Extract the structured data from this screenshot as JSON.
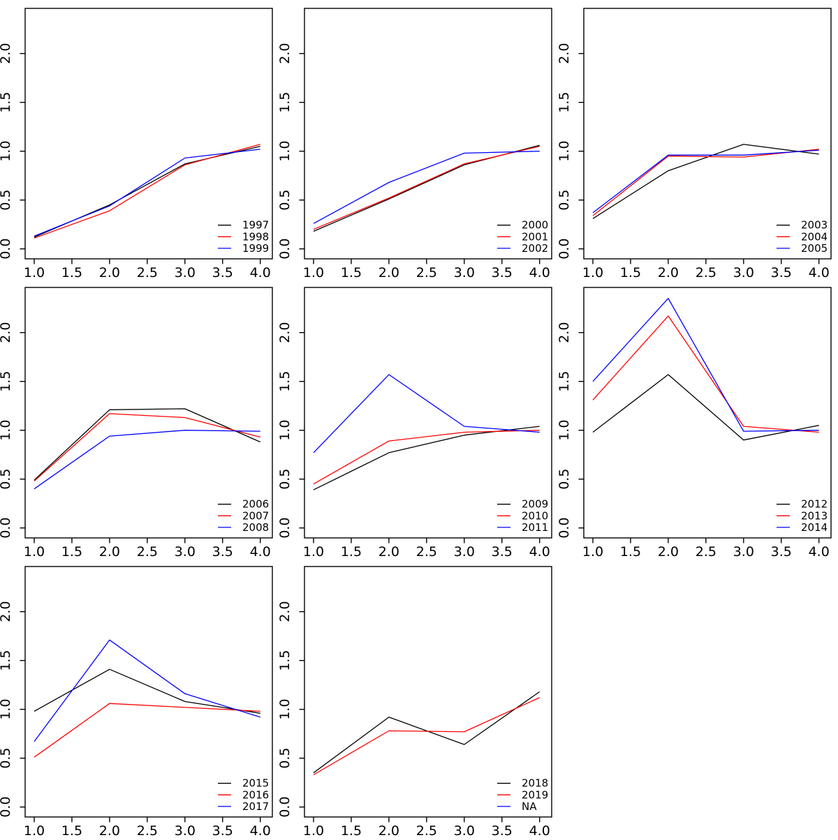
{
  "figure": {
    "background": "#ffffff",
    "grid_rows": 3,
    "grid_cols": 3,
    "empty_cells": 1
  },
  "axes": {
    "x_tick_labels": [
      "1.0",
      "1.5",
      "2.0",
      "2.5",
      "3.0",
      "3.5",
      "4.0"
    ],
    "y_tick_labels": [
      "0.0",
      "0.5",
      "1.0",
      "1.5",
      "2.0"
    ],
    "xlim": [
      0.88,
      4.12
    ],
    "ylim": [
      -0.1,
      2.45
    ],
    "grid": false,
    "box": true
  },
  "colors": {
    "series1": "#000000",
    "series2": "#FF0000",
    "series3": "#0000FF"
  },
  "chart_data": [
    {
      "type": "line",
      "title": "",
      "xlabel": "",
      "ylabel": "",
      "x": [
        1,
        2,
        3,
        4
      ],
      "legend_position": "bottom-right",
      "series": [
        {
          "name": "1997",
          "color": "#000000",
          "values": [
            0.12,
            0.45,
            0.87,
            1.05
          ]
        },
        {
          "name": "1998",
          "color": "#FF0000",
          "values": [
            0.11,
            0.39,
            0.86,
            1.07
          ]
        },
        {
          "name": "1999",
          "color": "#0000FF",
          "values": [
            0.13,
            0.44,
            0.93,
            1.02
          ]
        }
      ]
    },
    {
      "type": "line",
      "title": "",
      "xlabel": "",
      "ylabel": "",
      "x": [
        1,
        2,
        3,
        4
      ],
      "legend_position": "bottom-right",
      "series": [
        {
          "name": "2000",
          "color": "#000000",
          "values": [
            0.18,
            0.51,
            0.86,
            1.06
          ]
        },
        {
          "name": "2001",
          "color": "#FF0000",
          "values": [
            0.2,
            0.52,
            0.87,
            1.05
          ]
        },
        {
          "name": "2002",
          "color": "#0000FF",
          "values": [
            0.26,
            0.68,
            0.98,
            1.0
          ]
        }
      ]
    },
    {
      "type": "line",
      "title": "",
      "xlabel": "",
      "ylabel": "",
      "x": [
        1,
        2,
        3,
        4
      ],
      "legend_position": "bottom-right",
      "series": [
        {
          "name": "2003",
          "color": "#000000",
          "values": [
            0.31,
            0.8,
            1.07,
            0.97
          ]
        },
        {
          "name": "2004",
          "color": "#FF0000",
          "values": [
            0.34,
            0.95,
            0.94,
            1.02
          ]
        },
        {
          "name": "2005",
          "color": "#0000FF",
          "values": [
            0.37,
            0.96,
            0.96,
            1.01
          ]
        }
      ]
    },
    {
      "type": "line",
      "title": "",
      "xlabel": "",
      "ylabel": "",
      "x": [
        1,
        2,
        3,
        4
      ],
      "legend_position": "bottom-right",
      "series": [
        {
          "name": "2006",
          "color": "#000000",
          "values": [
            0.49,
            1.21,
            1.22,
            0.88
          ]
        },
        {
          "name": "2007",
          "color": "#FF0000",
          "values": [
            0.48,
            1.17,
            1.13,
            0.93
          ]
        },
        {
          "name": "2008",
          "color": "#0000FF",
          "values": [
            0.4,
            0.94,
            1.0,
            0.99
          ]
        }
      ]
    },
    {
      "type": "line",
      "title": "",
      "xlabel": "",
      "ylabel": "",
      "x": [
        1,
        2,
        3,
        4
      ],
      "legend_position": "bottom-right",
      "series": [
        {
          "name": "2009",
          "color": "#000000",
          "values": [
            0.39,
            0.77,
            0.95,
            1.04
          ]
        },
        {
          "name": "2010",
          "color": "#FF0000",
          "values": [
            0.45,
            0.89,
            0.98,
            1.0
          ]
        },
        {
          "name": "2011",
          "color": "#0000FF",
          "values": [
            0.77,
            1.57,
            1.04,
            0.98
          ]
        }
      ]
    },
    {
      "type": "line",
      "title": "",
      "xlabel": "",
      "ylabel": "",
      "x": [
        1,
        2,
        3,
        4
      ],
      "legend_position": "bottom-right",
      "series": [
        {
          "name": "2012",
          "color": "#000000",
          "values": [
            0.98,
            1.57,
            0.9,
            1.05
          ]
        },
        {
          "name": "2013",
          "color": "#FF0000",
          "values": [
            1.31,
            2.17,
            1.04,
            0.98
          ]
        },
        {
          "name": "2014",
          "color": "#0000FF",
          "values": [
            1.5,
            2.35,
            0.99,
            1.0
          ]
        }
      ]
    },
    {
      "type": "line",
      "title": "",
      "xlabel": "",
      "ylabel": "",
      "x": [
        1,
        2,
        3,
        4
      ],
      "legend_position": "bottom-right",
      "series": [
        {
          "name": "2015",
          "color": "#000000",
          "values": [
            0.98,
            1.41,
            1.08,
            0.96
          ]
        },
        {
          "name": "2016",
          "color": "#FF0000",
          "values": [
            0.51,
            1.06,
            1.02,
            0.98
          ]
        },
        {
          "name": "2017",
          "color": "#0000FF",
          "values": [
            0.67,
            1.71,
            1.16,
            0.92
          ]
        }
      ]
    },
    {
      "type": "line",
      "title": "",
      "xlabel": "",
      "ylabel": "",
      "x": [
        1,
        2,
        3,
        4
      ],
      "legend_position": "bottom-right",
      "series": [
        {
          "name": "2018",
          "color": "#000000",
          "values": [
            0.35,
            0.92,
            0.64,
            1.18
          ]
        },
        {
          "name": "2019",
          "color": "#FF0000",
          "values": [
            0.33,
            0.78,
            0.77,
            1.12
          ]
        },
        {
          "name": "NA",
          "color": "#0000FF",
          "values": null
        }
      ]
    }
  ]
}
